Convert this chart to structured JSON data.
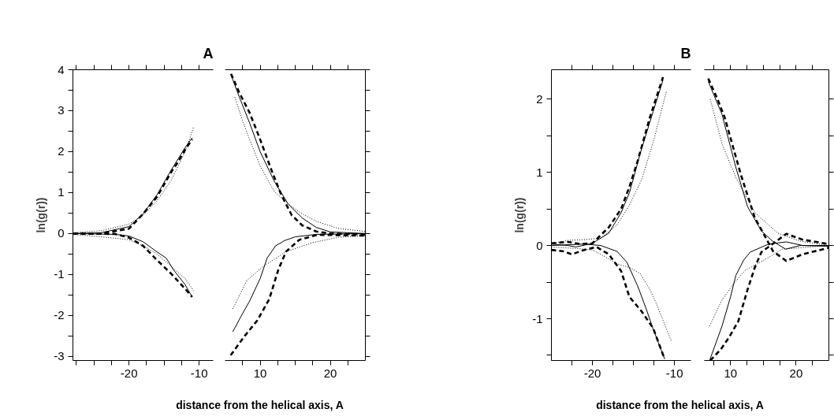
{
  "chart_data": [
    {
      "type": "line",
      "title": "A",
      "xlabel": "distance from the helical axis, A",
      "ylabel": "ln(g(r))",
      "xlim": [
        -28,
        -8
      ],
      "ylim": [
        -3.1,
        4
      ],
      "xticks": [
        {
          "value": -27.5,
          "label": null
        },
        {
          "value": -25,
          "label": null
        },
        {
          "value": -22.5,
          "label": null
        },
        -20,
        {
          "value": -17.5,
          "label": null
        },
        {
          "value": -15,
          "label": null
        },
        {
          "value": -12.5,
          "label": null
        },
        -10
      ],
      "yticks": [
        -3,
        {
          "value": -2.5,
          "label": null
        },
        -2,
        {
          "value": -1.5,
          "label": null
        },
        -1,
        {
          "value": -0.5,
          "label": null
        },
        0,
        {
          "value": 0.5,
          "label": null
        },
        1,
        {
          "value": 1.5,
          "label": null
        },
        2,
        {
          "value": 2.5,
          "label": null
        },
        3,
        {
          "value": 3.5,
          "label": null
        },
        4
      ],
      "series": [
        {
          "color": "#000000",
          "line_style": "solid",
          "x": [
            -28,
            -24,
            -20,
            -18,
            -16,
            -14,
            -12,
            -11
          ],
          "values": [
            0,
            0.02,
            0.17,
            0.48,
            0.95,
            1.55,
            2.1,
            2.34
          ]
        },
        {
          "color": "#000000",
          "line_style": "dashed",
          "x": [
            -28,
            -24,
            -20,
            -18,
            -16,
            -14,
            -13,
            -12,
            -11
          ],
          "values": [
            0,
            0,
            0.12,
            0.48,
            0.9,
            1.5,
            1.75,
            2.05,
            2.3
          ]
        },
        {
          "color": "#000000",
          "line_style": "dotted",
          "x": [
            -28,
            -24,
            -20,
            -18,
            -16,
            -14,
            -12,
            -10.8
          ],
          "values": [
            0.02,
            0.07,
            0.23,
            0.45,
            0.8,
            1.3,
            2.0,
            2.6
          ]
        },
        {
          "color": "#000000",
          "line_style": "solid",
          "x": [
            -28,
            -22,
            -20,
            -18,
            -16,
            -14.7,
            -13.6,
            -12,
            -11
          ],
          "values": [
            0,
            -0.02,
            -0.06,
            -0.2,
            -0.45,
            -0.6,
            -0.9,
            -1.25,
            -1.55
          ]
        },
        {
          "color": "#000000",
          "line_style": "dashed",
          "x": [
            -28,
            -22,
            -20,
            -18,
            -16,
            -14,
            -12,
            -11
          ],
          "values": [
            0,
            -0.01,
            -0.1,
            -0.3,
            -0.65,
            -0.98,
            -1.35,
            -1.55
          ]
        },
        {
          "color": "#000000",
          "line_style": "dotted",
          "x": [
            -28,
            -24,
            -20,
            -18,
            -16,
            -14,
            -12,
            -10.8
          ],
          "values": [
            -0.02,
            -0.08,
            -0.15,
            -0.3,
            -0.5,
            -0.8,
            -1.1,
            -1.4
          ]
        }
      ]
    },
    {
      "type": "line",
      "tick_labels": "x",
      "xlim": [
        5,
        25
      ],
      "ylim": [
        -3.1,
        4
      ],
      "xticks": [
        {
          "value": 7.5,
          "label": null
        },
        10,
        {
          "value": 12.5,
          "label": null
        },
        {
          "value": 15,
          "label": null
        },
        {
          "value": 17.5,
          "label": null
        },
        20,
        {
          "value": 22.5,
          "label": null
        }
      ],
      "yticks": [
        -3,
        {
          "value": -2.5,
          "label": null
        },
        -2,
        {
          "value": -1.5,
          "label": null
        },
        -1,
        {
          "value": -0.5,
          "label": null
        },
        0,
        {
          "value": 0.5,
          "label": null
        },
        1,
        {
          "value": 1.5,
          "label": null
        },
        2,
        {
          "value": 2.5,
          "label": null
        },
        3,
        {
          "value": 3.5,
          "label": null
        },
        4
      ],
      "series": [
        {
          "color": "#000000",
          "line_style": "solid",
          "x": [
            5.85,
            7,
            8.5,
            10,
            12,
            14,
            16,
            18,
            20,
            25
          ],
          "values": [
            3.87,
            3.35,
            2.7,
            2.0,
            1.28,
            0.72,
            0.38,
            0.15,
            0.04,
            0
          ]
        },
        {
          "color": "#000000",
          "line_style": "dashed",
          "x": [
            5.85,
            7,
            8.5,
            10,
            11.5,
            13,
            14.5,
            16,
            18,
            20,
            25
          ],
          "values": [
            3.9,
            3.45,
            2.95,
            2.3,
            1.6,
            0.95,
            0.45,
            0.2,
            0.05,
            0,
            -0.02
          ]
        },
        {
          "color": "#000000",
          "line_style": "dotted",
          "x": [
            6.4,
            7.5,
            8.5,
            10,
            12,
            14,
            16,
            18,
            21,
            25
          ],
          "values": [
            3.33,
            2.75,
            2.3,
            1.65,
            1.03,
            0.72,
            0.48,
            0.3,
            0.13,
            0.05
          ]
        },
        {
          "color": "#000000",
          "line_style": "solid",
          "x": [
            6.1,
            7.5,
            8.5,
            10,
            11,
            12.2,
            13.5,
            15,
            18,
            25
          ],
          "values": [
            -2.4,
            -1.95,
            -1.65,
            -1.1,
            -0.6,
            -0.3,
            -0.17,
            -0.08,
            -0.02,
            0
          ]
        },
        {
          "color": "#000000",
          "line_style": "dashed",
          "x": [
            5.8,
            7.8,
            9.6,
            11.3,
            12.6,
            13.7,
            15.6,
            18.2,
            25
          ],
          "values": [
            -2.97,
            -2.5,
            -2.12,
            -1.6,
            -0.88,
            -0.44,
            -0.15,
            -0.03,
            -0.05
          ]
        },
        {
          "color": "#000000",
          "line_style": "dotted",
          "x": [
            6.1,
            8.1,
            10.3,
            13.7,
            17.5,
            21.2,
            25
          ],
          "values": [
            -1.84,
            -1.15,
            -0.82,
            -0.44,
            -0.22,
            -0.09,
            -0.05
          ]
        }
      ]
    },
    {
      "type": "line",
      "title": "B",
      "xlabel": "distance from the helical axis, A",
      "ylabel": "ln(g(r))",
      "xlim": [
        -25,
        -8
      ],
      "ylim": [
        -1.57,
        2.4
      ],
      "xticks": [
        {
          "value": -22.5,
          "label": null
        },
        -20,
        {
          "value": -17.5,
          "label": null
        },
        {
          "value": -15,
          "label": null
        },
        {
          "value": -12.5,
          "label": null
        },
        -10
      ],
      "yticks": [
        {
          "value": -1.5,
          "label": null
        },
        -1,
        {
          "value": -0.5,
          "label": null
        },
        0,
        {
          "value": 0.5,
          "label": null
        },
        1,
        {
          "value": 1.5,
          "label": null
        },
        2
      ],
      "series": [
        {
          "color": "#000000",
          "line_style": "solid",
          "x": [
            -25,
            -23,
            -22,
            -20,
            -18,
            -16.5,
            -15.5,
            -14.8,
            -14.2,
            -12.6,
            -11.4
          ],
          "values": [
            0.02,
            0.0,
            -0.02,
            0.03,
            0.17,
            0.45,
            0.72,
            1.0,
            1.25,
            1.83,
            2.26
          ]
        },
        {
          "color": "#000000",
          "line_style": "dashed",
          "x": [
            -25,
            -23,
            -21.5,
            -20,
            -18,
            -16.5,
            -15.5,
            -14.5,
            -13,
            -11.4
          ],
          "values": [
            0.03,
            0.05,
            0.02,
            0.03,
            0.25,
            0.5,
            0.8,
            1.15,
            1.75,
            2.3
          ]
        },
        {
          "color": "#000000",
          "line_style": "dotted",
          "x": [
            -25,
            -23,
            -21,
            -19,
            -17,
            -15.5,
            -14,
            -12.5,
            -11
          ],
          "values": [
            0.02,
            0.07,
            0.08,
            0.1,
            0.28,
            0.55,
            0.9,
            1.45,
            2.1
          ]
        },
        {
          "color": "#000000",
          "line_style": "solid",
          "x": [
            -25,
            -21,
            -19,
            -17,
            -15.8,
            -14.5,
            -13.5,
            -12.6,
            -11.2
          ],
          "values": [
            0.0,
            0.02,
            0.0,
            -0.08,
            -0.23,
            -0.55,
            -0.85,
            -1.14,
            -1.55
          ]
        },
        {
          "color": "#000000",
          "line_style": "dashed",
          "x": [
            -25,
            -23.5,
            -22.5,
            -21,
            -19.5,
            -18,
            -16.5,
            -15.5,
            -14,
            -12.6,
            -11.2
          ],
          "values": [
            -0.06,
            -0.08,
            -0.12,
            -0.06,
            -0.02,
            -0.12,
            -0.35,
            -0.7,
            -0.9,
            -1.13,
            -1.55
          ]
        },
        {
          "color": "#000000",
          "line_style": "dotted",
          "x": [
            -25,
            -22,
            -20,
            -18.5,
            -17,
            -15.5,
            -14.2,
            -13,
            -12.3,
            -10.4
          ],
          "values": [
            -0.02,
            -0.04,
            -0.06,
            -0.15,
            -0.25,
            -0.3,
            -0.38,
            -0.6,
            -0.77,
            -1.3
          ]
        }
      ]
    },
    {
      "type": "line",
      "tick_labels": "x",
      "xlim": [
        6,
        25
      ],
      "ylim": [
        -1.57,
        2.4
      ],
      "xticks": [
        {
          "value": 7.5,
          "label": null
        },
        10,
        {
          "value": 12.5,
          "label": null
        },
        {
          "value": 15,
          "label": null
        },
        {
          "value": 17.5,
          "label": null
        },
        20,
        {
          "value": 22.5,
          "label": null
        }
      ],
      "yticks": [
        {
          "value": -1.5,
          "label": null
        },
        -1,
        {
          "value": -0.5,
          "label": null
        },
        0,
        {
          "value": 0.5,
          "label": null
        },
        1,
        {
          "value": 1.5,
          "label": null
        },
        2
      ],
      "series": [
        {
          "color": "#000000",
          "line_style": "solid",
          "x": [
            6.6,
            8.7,
            10.8,
            12.6,
            14.7,
            16.4,
            18.4,
            20.6,
            25
          ],
          "values": [
            2.24,
            1.79,
            1.07,
            0.53,
            0.2,
            0.06,
            -0.05,
            0.0,
            0.0
          ]
        },
        {
          "color": "#000000",
          "line_style": "dashed",
          "x": [
            6.6,
            8,
            9.1,
            11.6,
            13.7,
            15.4,
            16.5,
            18.5,
            21,
            25
          ],
          "values": [
            2.28,
            2.0,
            1.75,
            0.96,
            0.38,
            0.1,
            -0.08,
            -0.21,
            -0.12,
            -0.03
          ]
        },
        {
          "color": "#000000",
          "line_style": "dotted",
          "x": [
            6.9,
            8.7,
            10.8,
            13.7,
            17.2,
            20.6,
            25
          ],
          "values": [
            2.0,
            1.39,
            0.93,
            0.45,
            0.17,
            0.06,
            0.0
          ]
        },
        {
          "color": "#000000",
          "line_style": "solid",
          "x": [
            6.8,
            8.7,
            10,
            10.8,
            12,
            13,
            15.8,
            18.5,
            21,
            25
          ],
          "values": [
            -1.57,
            -1.1,
            -0.7,
            -0.41,
            -0.2,
            -0.09,
            0.02,
            0.05,
            0.0,
            -0.01
          ]
        },
        {
          "color": "#000000",
          "line_style": "dashed",
          "x": [
            6.9,
            8.5,
            9.8,
            11.2,
            12.6,
            13.7,
            14.7,
            16.4,
            18.5,
            21,
            25
          ],
          "values": [
            -1.57,
            -1.42,
            -1.25,
            -1.03,
            -0.6,
            -0.3,
            -0.09,
            0.02,
            0.16,
            0.08,
            0.02
          ]
        },
        {
          "color": "#000000",
          "line_style": "dotted",
          "x": [
            6.8,
            8.7,
            10.5,
            12.2,
            15.1,
            17.9,
            25
          ],
          "values": [
            -1.1,
            -0.74,
            -0.52,
            -0.34,
            -0.2,
            -0.05,
            0.0
          ]
        }
      ]
    }
  ]
}
